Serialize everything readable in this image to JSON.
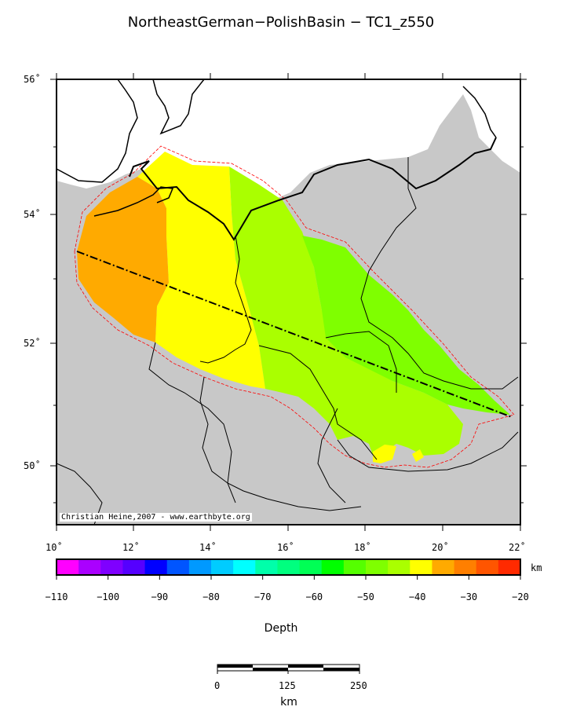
{
  "title": "NortheastGerman−PolishBasin − TC1_z550",
  "credit": "Christian Heine,2007 - www.earthbyte.org",
  "map": {
    "lat_labels": [
      "56˚",
      "54˚",
      "52˚",
      "50˚"
    ],
    "lon_labels": [
      "10˚",
      "12˚",
      "14˚",
      "16˚",
      "18˚",
      "20˚",
      "22˚"
    ],
    "land_color": "#c8c8c8",
    "coast_color": "#000000",
    "boundary_color": "#ff0000",
    "fill_classes": [
      {
        "range": "-35 to -30",
        "color": "#ffaa00"
      },
      {
        "range": "-40 to -35",
        "color": "#ffff00"
      },
      {
        "range": "-45 to -40",
        "color": "#aaff00"
      },
      {
        "range": "-50 to -45",
        "color": "#7fff00"
      }
    ]
  },
  "colorbar": {
    "unit": "km",
    "label": "Depth",
    "tick_labels": [
      "−110",
      "−100",
      "−90",
      "−80",
      "−70",
      "−60",
      "−50",
      "−40",
      "−30",
      "−20"
    ],
    "colors": [
      "#ff00ff",
      "#aa00ff",
      "#7f00ff",
      "#5500ff",
      "#0000ff",
      "#0055ff",
      "#0099ff",
      "#00ccff",
      "#00ffff",
      "#00ffaa",
      "#00ff7f",
      "#00ff55",
      "#00ff00",
      "#55ff00",
      "#7fff00",
      "#aaff00",
      "#ffff00",
      "#ffaa00",
      "#ff7f00",
      "#ff5500",
      "#ff2a00"
    ]
  },
  "scalebar": {
    "labels": [
      "0",
      "125",
      "250"
    ],
    "unit": "km"
  }
}
